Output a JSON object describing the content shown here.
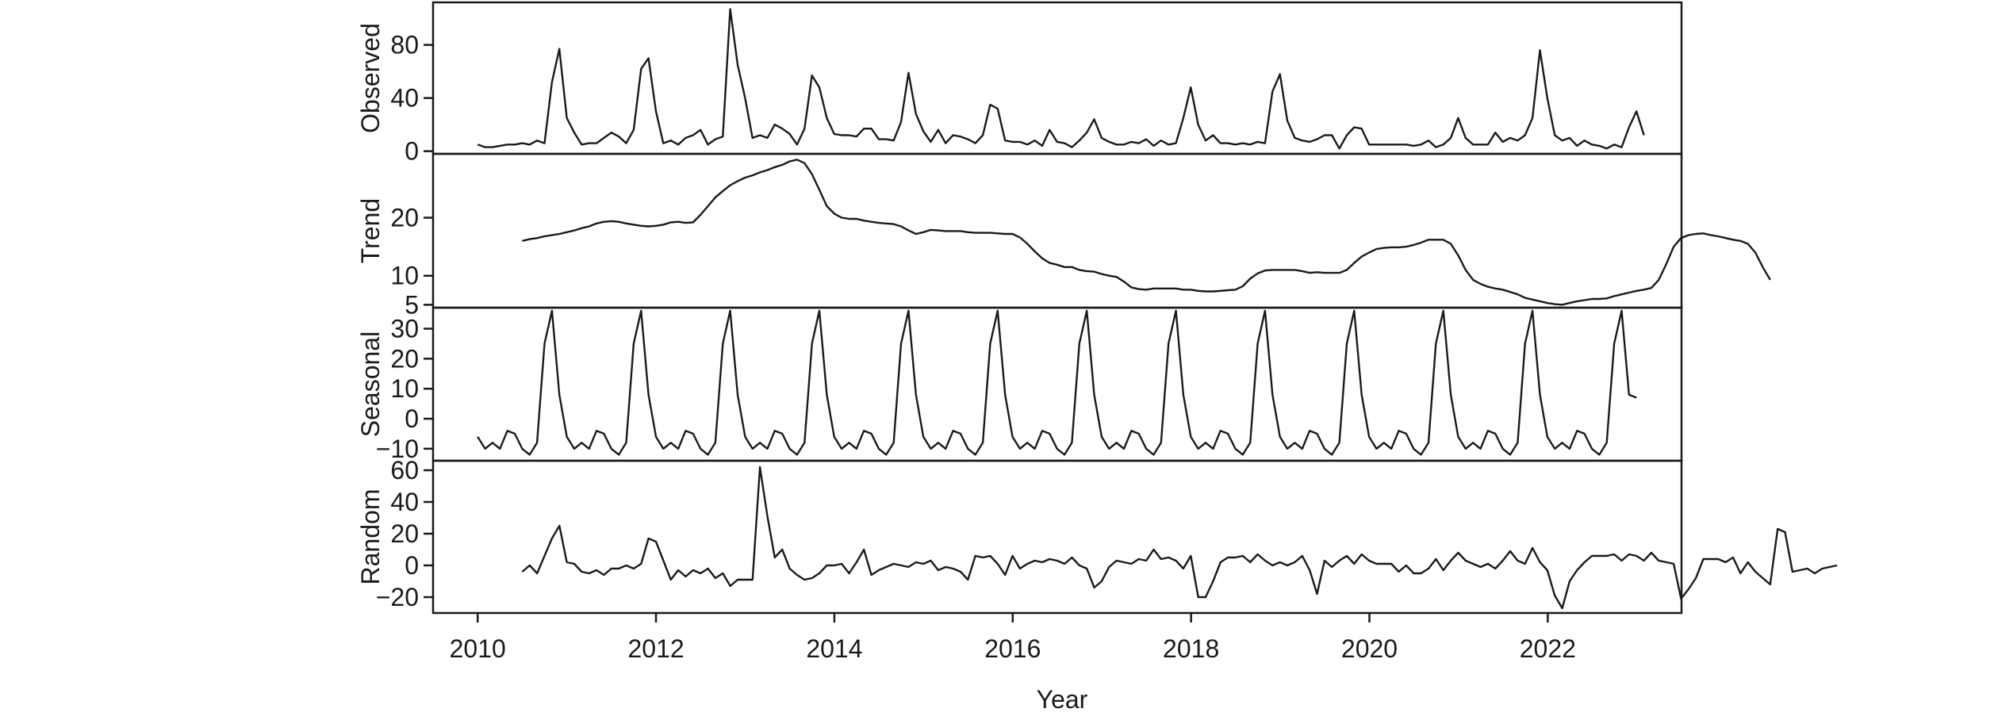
{
  "chart_data": {
    "type": "line",
    "title": "",
    "xlabel": "Year",
    "x_range": [
      2009.5,
      2023.5
    ],
    "x_ticks": [
      2010,
      2012,
      2014,
      2016,
      2018,
      2020,
      2022
    ],
    "x_tick_labels": [
      "2010",
      "2012",
      "2014",
      "2016",
      "2018",
      "2020",
      "2022"
    ],
    "series_color": "#1a1a1a",
    "panels": [
      {
        "name": "Observed",
        "ylim": [
          -2,
          112
        ],
        "ticks": [
          0,
          40,
          80
        ],
        "tick_labels": [
          "0",
          "40",
          "80"
        ],
        "x_start": 2010.0,
        "step": 0.0833,
        "values": [
          5,
          3,
          3,
          4,
          5,
          5,
          6,
          5,
          8,
          6,
          52,
          77,
          25,
          14,
          5,
          6,
          6,
          10,
          14,
          11,
          6,
          16,
          62,
          70,
          30,
          6,
          8,
          5,
          10,
          12,
          16,
          5,
          9,
          11,
          107,
          65,
          40,
          10,
          12,
          10,
          20,
          17,
          13,
          5,
          17,
          57,
          48,
          25,
          13,
          12,
          12,
          11,
          17,
          17,
          9,
          9,
          8,
          22,
          59,
          28,
          15,
          7,
          16,
          6,
          12,
          11,
          9,
          6,
          12,
          35,
          32,
          8,
          7,
          7,
          5,
          8,
          4,
          16,
          7,
          6,
          3,
          8,
          14,
          24,
          10,
          7,
          5,
          5,
          7,
          6,
          9,
          4,
          8,
          5,
          6,
          25,
          48,
          20,
          8,
          12,
          6,
          6,
          5,
          6,
          5,
          7,
          6,
          45,
          58,
          23,
          10,
          8,
          7,
          9,
          12,
          12,
          2,
          12,
          18,
          17,
          5,
          5,
          5,
          5,
          5,
          5,
          4,
          5,
          8,
          3,
          5,
          10,
          25,
          10,
          5,
          5,
          5,
          14,
          7,
          10,
          8,
          12,
          25,
          76,
          40,
          12,
          8,
          10,
          4,
          8,
          5,
          4,
          2,
          5,
          3,
          18,
          30,
          12
        ]
      },
      {
        "name": "Trend",
        "ylim": [
          4.5,
          31.0
        ],
        "ticks": [
          5,
          10,
          20
        ],
        "tick_labels": [
          "5",
          "10",
          "20"
        ],
        "x_start": 2010.5,
        "step": 0.0833,
        "values": [
          16.0,
          16.3,
          16.5,
          16.8,
          17.0,
          17.2,
          17.5,
          17.8,
          18.2,
          18.5,
          19.0,
          19.3,
          19.4,
          19.3,
          19.0,
          18.8,
          18.6,
          18.5,
          18.6,
          18.8,
          19.2,
          19.3,
          19.1,
          19.2,
          20.5,
          22.0,
          23.5,
          24.6,
          25.6,
          26.3,
          26.9,
          27.3,
          27.8,
          28.2,
          28.7,
          29.1,
          29.7,
          30.0,
          29.4,
          27.5,
          24.8,
          22.0,
          20.7,
          20.0,
          19.8,
          19.8,
          19.5,
          19.3,
          19.1,
          19.0,
          18.9,
          18.5,
          17.8,
          17.2,
          17.5,
          17.9,
          17.8,
          17.7,
          17.7,
          17.7,
          17.5,
          17.4,
          17.4,
          17.4,
          17.3,
          17.2,
          17.2,
          16.6,
          15.5,
          14.2,
          13.0,
          12.2,
          11.9,
          11.5,
          11.5,
          11.0,
          10.8,
          10.7,
          10.3,
          10.0,
          9.8,
          9.0,
          8.0,
          7.7,
          7.6,
          7.8,
          7.8,
          7.8,
          7.8,
          7.6,
          7.6,
          7.4,
          7.3,
          7.3,
          7.4,
          7.5,
          7.6,
          8.2,
          9.5,
          10.4,
          10.9,
          11.0,
          11.0,
          11.0,
          11.0,
          10.8,
          10.5,
          10.6,
          10.5,
          10.5,
          10.5,
          11.0,
          12.2,
          13.3,
          14.0,
          14.6,
          14.8,
          14.9,
          14.9,
          15.0,
          15.3,
          15.7,
          16.2,
          16.2,
          16.2,
          15.5,
          13.5,
          11.0,
          9.3,
          8.6,
          8.1,
          7.8,
          7.6,
          7.2,
          6.8,
          6.2,
          5.9,
          5.6,
          5.3,
          5.1,
          5.0,
          5.3,
          5.6,
          5.8,
          6.0,
          6.0,
          6.1,
          6.5,
          6.8,
          7.1,
          7.4,
          7.6,
          7.9,
          9.3,
          12.0,
          15.0,
          16.5,
          17.0,
          17.2,
          17.3,
          17.0,
          16.8,
          16.5,
          16.2,
          16.0,
          15.5,
          14.0,
          11.5,
          9.3
        ]
      },
      {
        "name": "Seasonal",
        "ylim": [
          -14,
          37
        ],
        "ticks": [
          -10,
          0,
          10,
          20,
          30
        ],
        "tick_labels": [
          "−10",
          "0",
          "10",
          "20",
          "30"
        ],
        "x_start": 2010.0,
        "step": 0.0833,
        "pattern": [
          -6,
          -10,
          -8,
          -10,
          -4,
          -5,
          -10,
          -12,
          -8,
          25,
          36,
          8
        ],
        "end_x": 2023.0,
        "end_value": 7
      },
      {
        "name": "Random",
        "ylim": [
          -30,
          66
        ],
        "ticks": [
          -20,
          0,
          20,
          40,
          60
        ],
        "tick_labels": [
          "−20",
          "0",
          "20",
          "40",
          "60"
        ],
        "x_start": 2010.5,
        "step": 0.0833,
        "values": [
          -4,
          0,
          -5,
          6,
          17,
          25,
          2,
          1,
          -4,
          -5,
          -3,
          -6,
          -2,
          -2,
          0,
          -2,
          1,
          17,
          15,
          3,
          -9,
          -3,
          -7,
          -3,
          -5,
          -2,
          -8,
          -5,
          -13,
          -9,
          -9,
          -9,
          62,
          31,
          5,
          10,
          -2,
          -6,
          -9,
          -8,
          -5,
          0,
          0,
          1,
          -5,
          2,
          10,
          -6,
          -3,
          -1,
          1,
          0,
          -1,
          2,
          1,
          3,
          -3,
          -1,
          -2,
          -4,
          -9,
          6,
          5,
          6,
          1,
          -6,
          6,
          -2,
          1,
          3,
          2,
          4,
          3,
          1,
          5,
          0,
          -2,
          -14,
          -10,
          -1,
          3,
          2,
          1,
          4,
          3,
          10,
          4,
          5,
          3,
          -2,
          6,
          -20,
          -20,
          -10,
          2,
          5,
          5,
          6,
          2,
          7,
          3,
          0,
          2,
          0,
          2,
          6,
          -3,
          -18,
          3,
          -1,
          3,
          6,
          1,
          7,
          3,
          1,
          1,
          1,
          -4,
          0,
          -5,
          -5,
          -2,
          4,
          -3,
          3,
          8,
          3,
          1,
          -1,
          1,
          -2,
          3,
          9,
          3,
          1,
          11,
          2,
          -3,
          -19,
          -27,
          -10,
          -3,
          2,
          6,
          6,
          6,
          7,
          3,
          7,
          6,
          3,
          8,
          3,
          2,
          1,
          -21,
          -15,
          -8,
          4,
          4,
          4,
          2,
          5,
          -5,
          2,
          -4,
          -8,
          -12,
          23,
          21,
          -4,
          -3,
          -2,
          -5,
          -2,
          -1,
          0
        ]
      }
    ]
  }
}
